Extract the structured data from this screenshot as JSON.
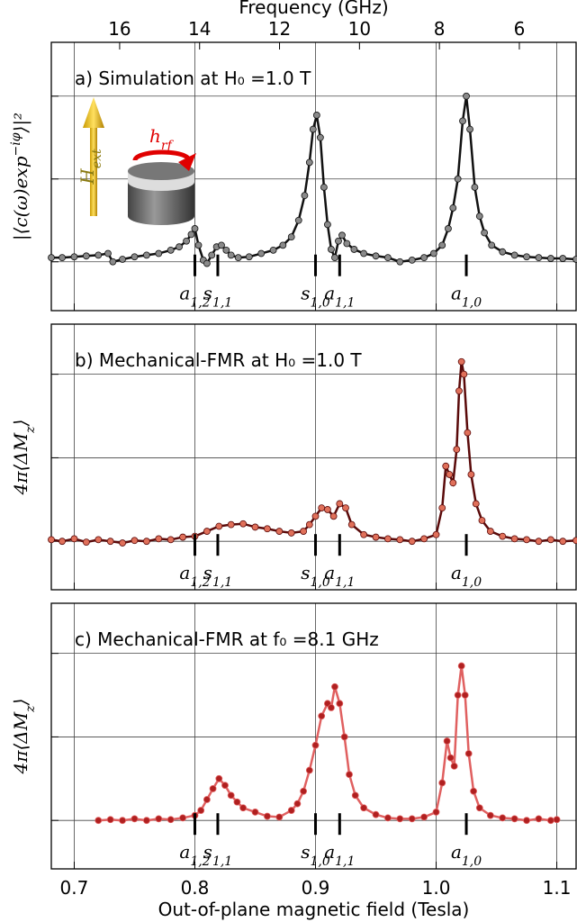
{
  "chart_data": [
    {
      "type": "line",
      "title": "a) Simulation at H₀ =1.0 T",
      "ylabel": [
        "|⟨c(ω)exp",
        "−iφ",
        "⟩|²"
      ],
      "ylabel_script": "sup",
      "x2label": "Frequency (GHz)",
      "x2lim": [
        17.71,
        4.58
      ],
      "x2ticks": [
        16,
        14,
        12,
        10,
        8,
        6
      ],
      "xlim": [
        0.681,
        1.116
      ],
      "xticks": [
        0.7,
        0.8,
        0.9,
        1,
        1.1
      ],
      "ylim": [
        -0.59,
        2.65
      ],
      "yticks": [
        0,
        1,
        2
      ],
      "grid": true,
      "inset": {
        "field": [
          "H",
          "ext"
        ],
        "rf": [
          "h",
          "rf"
        ]
      },
      "modes": [
        {
          "x": 0.8,
          "label": [
            "a",
            "1,2"
          ]
        },
        {
          "x": 0.819,
          "label": [
            "s",
            "1,1"
          ]
        },
        {
          "x": 0.9,
          "label": [
            "s",
            "1,0"
          ]
        },
        {
          "x": 0.92,
          "label": [
            "a",
            "1,1"
          ]
        },
        {
          "x": 1.025,
          "label": [
            "a",
            "1,0"
          ]
        }
      ],
      "series": [
        {
          "color": "#111111",
          "marker_color": "#8a8a8a",
          "x": [
            0.681,
            0.69,
            0.7,
            0.71,
            0.72,
            0.728,
            0.732,
            0.74,
            0.75,
            0.76,
            0.77,
            0.78,
            0.787,
            0.793,
            0.797,
            0.8,
            0.803,
            0.807,
            0.81,
            0.814,
            0.818,
            0.822,
            0.826,
            0.83,
            0.836,
            0.845,
            0.855,
            0.865,
            0.873,
            0.88,
            0.886,
            0.891,
            0.895,
            0.898,
            0.901,
            0.904,
            0.907,
            0.91,
            0.913,
            0.916,
            0.919,
            0.922,
            0.926,
            0.932,
            0.94,
            0.95,
            0.96,
            0.97,
            0.98,
            0.99,
            0.998,
            1.005,
            1.01,
            1.014,
            1.018,
            1.022,
            1.025,
            1.028,
            1.032,
            1.036,
            1.04,
            1.046,
            1.055,
            1.065,
            1.075,
            1.085,
            1.095,
            1.105,
            1.116
          ],
          "values": [
            0.05,
            0.05,
            0.06,
            0.07,
            0.08,
            0.1,
            0.0,
            0.03,
            0.06,
            0.08,
            0.1,
            0.14,
            0.18,
            0.25,
            0.33,
            0.4,
            0.2,
            0.02,
            -0.02,
            0.08,
            0.18,
            0.2,
            0.14,
            0.08,
            0.05,
            0.06,
            0.1,
            0.14,
            0.2,
            0.3,
            0.5,
            0.8,
            1.2,
            1.6,
            1.77,
            1.5,
            0.9,
            0.45,
            0.15,
            0.05,
            0.25,
            0.32,
            0.22,
            0.15,
            0.1,
            0.07,
            0.05,
            0.0,
            0.02,
            0.05,
            0.1,
            0.2,
            0.4,
            0.65,
            1.0,
            1.7,
            2.0,
            1.6,
            0.9,
            0.55,
            0.35,
            0.2,
            0.12,
            0.08,
            0.06,
            0.05,
            0.04,
            0.04,
            0.03
          ]
        }
      ]
    },
    {
      "type": "line",
      "title": "b) Mechanical-FMR at H₀ =1.0 T",
      "ylabel": [
        "4π⟨ΔM",
        "z",
        "⟩"
      ],
      "ylabel_script": "sub",
      "xlim": [
        0.681,
        1.116
      ],
      "xticks": [
        0.7,
        0.8,
        0.9,
        1,
        1.1
      ],
      "ylim": [
        -0.58,
        2.6
      ],
      "yticks": [
        0,
        1,
        2
      ],
      "grid": true,
      "modes": [
        {
          "x": 0.8,
          "label": [
            "a",
            "1,2"
          ]
        },
        {
          "x": 0.819,
          "label": [
            "s",
            "1,1"
          ]
        },
        {
          "x": 0.9,
          "label": [
            "s",
            "1,0"
          ]
        },
        {
          "x": 0.92,
          "label": [
            "a",
            "1,1"
          ]
        },
        {
          "x": 1.025,
          "label": [
            "a",
            "1,0"
          ]
        }
      ],
      "series": [
        {
          "color": "#5a0a0a",
          "marker_color": "#e0705a",
          "x": [
            0.681,
            0.69,
            0.7,
            0.71,
            0.72,
            0.73,
            0.74,
            0.75,
            0.76,
            0.77,
            0.78,
            0.79,
            0.8,
            0.81,
            0.82,
            0.83,
            0.84,
            0.85,
            0.86,
            0.87,
            0.88,
            0.89,
            0.895,
            0.9,
            0.905,
            0.91,
            0.915,
            0.92,
            0.925,
            0.93,
            0.94,
            0.95,
            0.96,
            0.97,
            0.98,
            0.99,
            1.0,
            1.005,
            1.008,
            1.011,
            1.014,
            1.017,
            1.019,
            1.021,
            1.023,
            1.026,
            1.029,
            1.033,
            1.038,
            1.045,
            1.055,
            1.065,
            1.075,
            1.085,
            1.095,
            1.105,
            1.116
          ],
          "values": [
            0.02,
            0.0,
            0.03,
            -0.01,
            0.02,
            0.0,
            -0.02,
            0.01,
            0.0,
            0.03,
            0.02,
            0.05,
            0.06,
            0.12,
            0.18,
            0.2,
            0.21,
            0.17,
            0.15,
            0.12,
            0.1,
            0.12,
            0.2,
            0.3,
            0.4,
            0.38,
            0.3,
            0.45,
            0.4,
            0.2,
            0.08,
            0.05,
            0.03,
            0.02,
            0.0,
            0.03,
            0.08,
            0.4,
            0.9,
            0.8,
            0.7,
            1.1,
            1.8,
            2.15,
            2.0,
            1.3,
            0.8,
            0.45,
            0.25,
            0.12,
            0.06,
            0.03,
            0.02,
            0.0,
            0.02,
            0.0,
            0.01
          ]
        }
      ]
    },
    {
      "type": "line",
      "title": "c) Mechanical-FMR at f₀ =8.1 GHz",
      "ylabel": [
        "4π⟨ΔM",
        "z",
        "⟩"
      ],
      "ylabel_script": "sub",
      "xlabel": "Out-of-plane magnetic field (Tesla)",
      "xlim": [
        0.681,
        1.116
      ],
      "xticks": [
        0.7,
        0.8,
        0.9,
        {
          "value": 1,
          "label": "1.0"
        },
        1.1
      ],
      "ylim": [
        -0.58,
        2.6
      ],
      "yticks": [
        0,
        1,
        2
      ],
      "grid": true,
      "modes": [
        {
          "x": 0.8,
          "label": [
            "a",
            "1,2"
          ]
        },
        {
          "x": 0.819,
          "label": [
            "s",
            "1,1"
          ]
        },
        {
          "x": 0.9,
          "label": [
            "s",
            "1,0"
          ]
        },
        {
          "x": 0.92,
          "label": [
            "a",
            "1,1"
          ]
        },
        {
          "x": 1.025,
          "label": [
            "a",
            "1,0"
          ]
        }
      ],
      "series": [
        {
          "color": "#e06060",
          "marker_color": "#b02020",
          "x": [
            0.72,
            0.73,
            0.74,
            0.75,
            0.76,
            0.77,
            0.78,
            0.79,
            0.8,
            0.805,
            0.81,
            0.815,
            0.82,
            0.825,
            0.83,
            0.835,
            0.84,
            0.85,
            0.86,
            0.87,
            0.88,
            0.885,
            0.89,
            0.895,
            0.9,
            0.905,
            0.91,
            0.913,
            0.916,
            0.92,
            0.924,
            0.928,
            0.933,
            0.94,
            0.95,
            0.96,
            0.97,
            0.98,
            0.99,
            1.0,
            1.005,
            1.009,
            1.012,
            1.015,
            1.018,
            1.021,
            1.024,
            1.027,
            1.031,
            1.036,
            1.045,
            1.055,
            1.065,
            1.075,
            1.085,
            1.095,
            1.1
          ],
          "values": [
            0.0,
            0.01,
            0.0,
            0.02,
            0.0,
            0.02,
            0.01,
            0.03,
            0.06,
            0.12,
            0.25,
            0.38,
            0.5,
            0.42,
            0.3,
            0.22,
            0.15,
            0.1,
            0.05,
            0.04,
            0.12,
            0.2,
            0.35,
            0.6,
            0.9,
            1.25,
            1.4,
            1.35,
            1.6,
            1.4,
            1.0,
            0.55,
            0.3,
            0.15,
            0.07,
            0.03,
            0.02,
            0.02,
            0.04,
            0.1,
            0.45,
            0.95,
            0.75,
            0.65,
            1.5,
            1.85,
            1.5,
            0.8,
            0.35,
            0.15,
            0.06,
            0.03,
            0.02,
            0.0,
            0.02,
            0.0,
            0.01
          ]
        }
      ]
    }
  ]
}
